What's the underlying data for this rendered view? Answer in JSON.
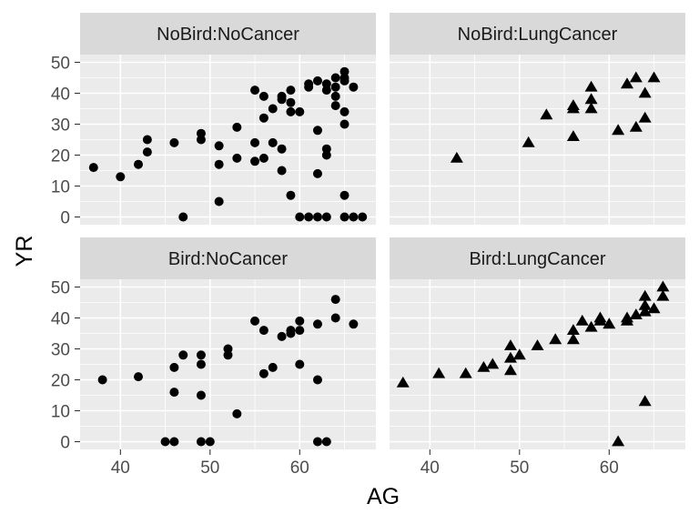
{
  "chart_data": {
    "type": "scatter",
    "xlabel": "AG",
    "ylabel": "YR",
    "xlim": [
      35.5,
      68.5
    ],
    "ylim": [
      -2.5,
      52.5
    ],
    "x_ticks": [
      40,
      50,
      60
    ],
    "y_ticks": [
      0,
      10,
      20,
      30,
      40,
      50
    ],
    "grid": true,
    "legend": "none",
    "shape_map": {
      "NoCancer": "circle",
      "LungCancer": "triangle"
    },
    "panels": [
      {
        "label": "NoBird:NoCancer",
        "shape": "circle",
        "points": [
          [
            37,
            16
          ],
          [
            40,
            13
          ],
          [
            42,
            17
          ],
          [
            43,
            21
          ],
          [
            43,
            25
          ],
          [
            46,
            24
          ],
          [
            47,
            0
          ],
          [
            49,
            27
          ],
          [
            49,
            25
          ],
          [
            51,
            23
          ],
          [
            51,
            17
          ],
          [
            51,
            5
          ],
          [
            53,
            29
          ],
          [
            53,
            19
          ],
          [
            55,
            41
          ],
          [
            55,
            24
          ],
          [
            55,
            18
          ],
          [
            56,
            39
          ],
          [
            56,
            32
          ],
          [
            56,
            19
          ],
          [
            57,
            35
          ],
          [
            57,
            24
          ],
          [
            58,
            39
          ],
          [
            58,
            38
          ],
          [
            58,
            22
          ],
          [
            58,
            15
          ],
          [
            59,
            41
          ],
          [
            59,
            37
          ],
          [
            59,
            34
          ],
          [
            59,
            7
          ],
          [
            60,
            34
          ],
          [
            60,
            0
          ],
          [
            61,
            43
          ],
          [
            61,
            42
          ],
          [
            61,
            0
          ],
          [
            62,
            44
          ],
          [
            62,
            28
          ],
          [
            62,
            14
          ],
          [
            62,
            0
          ],
          [
            63,
            43
          ],
          [
            63,
            41
          ],
          [
            63,
            22
          ],
          [
            63,
            20
          ],
          [
            63,
            0
          ],
          [
            64,
            45
          ],
          [
            64,
            42
          ],
          [
            64,
            39
          ],
          [
            64,
            36
          ],
          [
            65,
            47
          ],
          [
            65,
            45
          ],
          [
            65,
            44
          ],
          [
            65,
            34
          ],
          [
            65,
            30
          ],
          [
            65,
            7
          ],
          [
            65,
            0
          ],
          [
            66,
            42
          ],
          [
            66,
            0
          ],
          [
            67,
            0
          ]
        ]
      },
      {
        "label": "NoBird:LungCancer",
        "shape": "triangle",
        "points": [
          [
            43,
            19
          ],
          [
            51,
            24
          ],
          [
            53,
            33
          ],
          [
            56,
            36
          ],
          [
            56,
            35
          ],
          [
            56,
            26
          ],
          [
            58,
            42
          ],
          [
            58,
            38
          ],
          [
            58,
            35
          ],
          [
            61,
            28
          ],
          [
            62,
            43
          ],
          [
            63,
            45
          ],
          [
            63,
            29
          ],
          [
            64,
            40
          ],
          [
            64,
            32
          ],
          [
            65,
            45
          ]
        ]
      },
      {
        "label": "Bird:NoCancer",
        "shape": "circle",
        "points": [
          [
            38,
            20
          ],
          [
            42,
            21
          ],
          [
            45,
            0
          ],
          [
            46,
            0
          ],
          [
            46,
            24
          ],
          [
            46,
            16
          ],
          [
            47,
            28
          ],
          [
            49,
            28
          ],
          [
            49,
            25
          ],
          [
            49,
            15
          ],
          [
            49,
            0
          ],
          [
            50,
            0
          ],
          [
            52,
            30
          ],
          [
            52,
            28
          ],
          [
            53,
            9
          ],
          [
            55,
            39
          ],
          [
            56,
            36
          ],
          [
            56,
            22
          ],
          [
            57,
            24
          ],
          [
            58,
            34
          ],
          [
            59,
            36
          ],
          [
            59,
            35
          ],
          [
            60,
            39
          ],
          [
            60,
            36
          ],
          [
            60,
            25
          ],
          [
            62,
            38
          ],
          [
            62,
            20
          ],
          [
            62,
            0
          ],
          [
            63,
            0
          ],
          [
            64,
            46
          ],
          [
            64,
            40
          ],
          [
            66,
            38
          ]
        ]
      },
      {
        "label": "Bird:LungCancer",
        "shape": "triangle",
        "points": [
          [
            37,
            19
          ],
          [
            41,
            22
          ],
          [
            44,
            22
          ],
          [
            46,
            24
          ],
          [
            47,
            25
          ],
          [
            49,
            31
          ],
          [
            49,
            27
          ],
          [
            49,
            23
          ],
          [
            50,
            28
          ],
          [
            52,
            31
          ],
          [
            54,
            33
          ],
          [
            56,
            36
          ],
          [
            56,
            33
          ],
          [
            57,
            39
          ],
          [
            58,
            37
          ],
          [
            59,
            40
          ],
          [
            59,
            39
          ],
          [
            60,
            38
          ],
          [
            62,
            40
          ],
          [
            62,
            39
          ],
          [
            63,
            41
          ],
          [
            64,
            47
          ],
          [
            64,
            44
          ],
          [
            64,
            42
          ],
          [
            64,
            13
          ],
          [
            65,
            43
          ],
          [
            66,
            50
          ],
          [
            66,
            47
          ],
          [
            61,
            0
          ]
        ]
      }
    ]
  }
}
